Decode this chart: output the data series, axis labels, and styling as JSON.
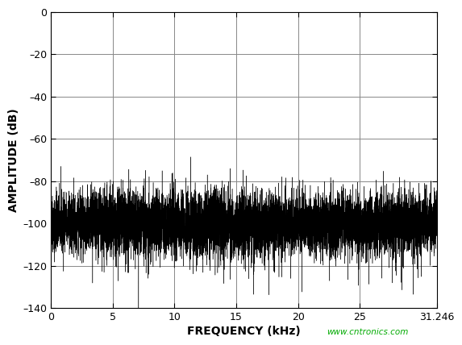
{
  "xlim": [
    0,
    31.246
  ],
  "ylim": [
    -140,
    0
  ],
  "xticks": [
    0,
    5,
    10,
    15,
    20,
    25,
    31.246
  ],
  "xtick_labels": [
    "0",
    "5",
    "10",
    "15",
    "20",
    "25",
    "31.246"
  ],
  "yticks": [
    0,
    -20,
    -40,
    -60,
    -80,
    -100,
    -120,
    -140
  ],
  "ytick_labels": [
    "0",
    "–20",
    "–40",
    "–60",
    "–80",
    "–100",
    "–120",
    "–140"
  ],
  "xlabel": "FREQUENCY (kHz)",
  "ylabel": "AMPLITUDE (dB)",
  "noise_mean": -100,
  "line_color": "#000000",
  "background_color": "#ffffff",
  "grid_color": "#888888",
  "watermark_text": "www.cntronics.com",
  "watermark_color": "#00aa00",
  "num_points": 8000,
  "seed": 42
}
